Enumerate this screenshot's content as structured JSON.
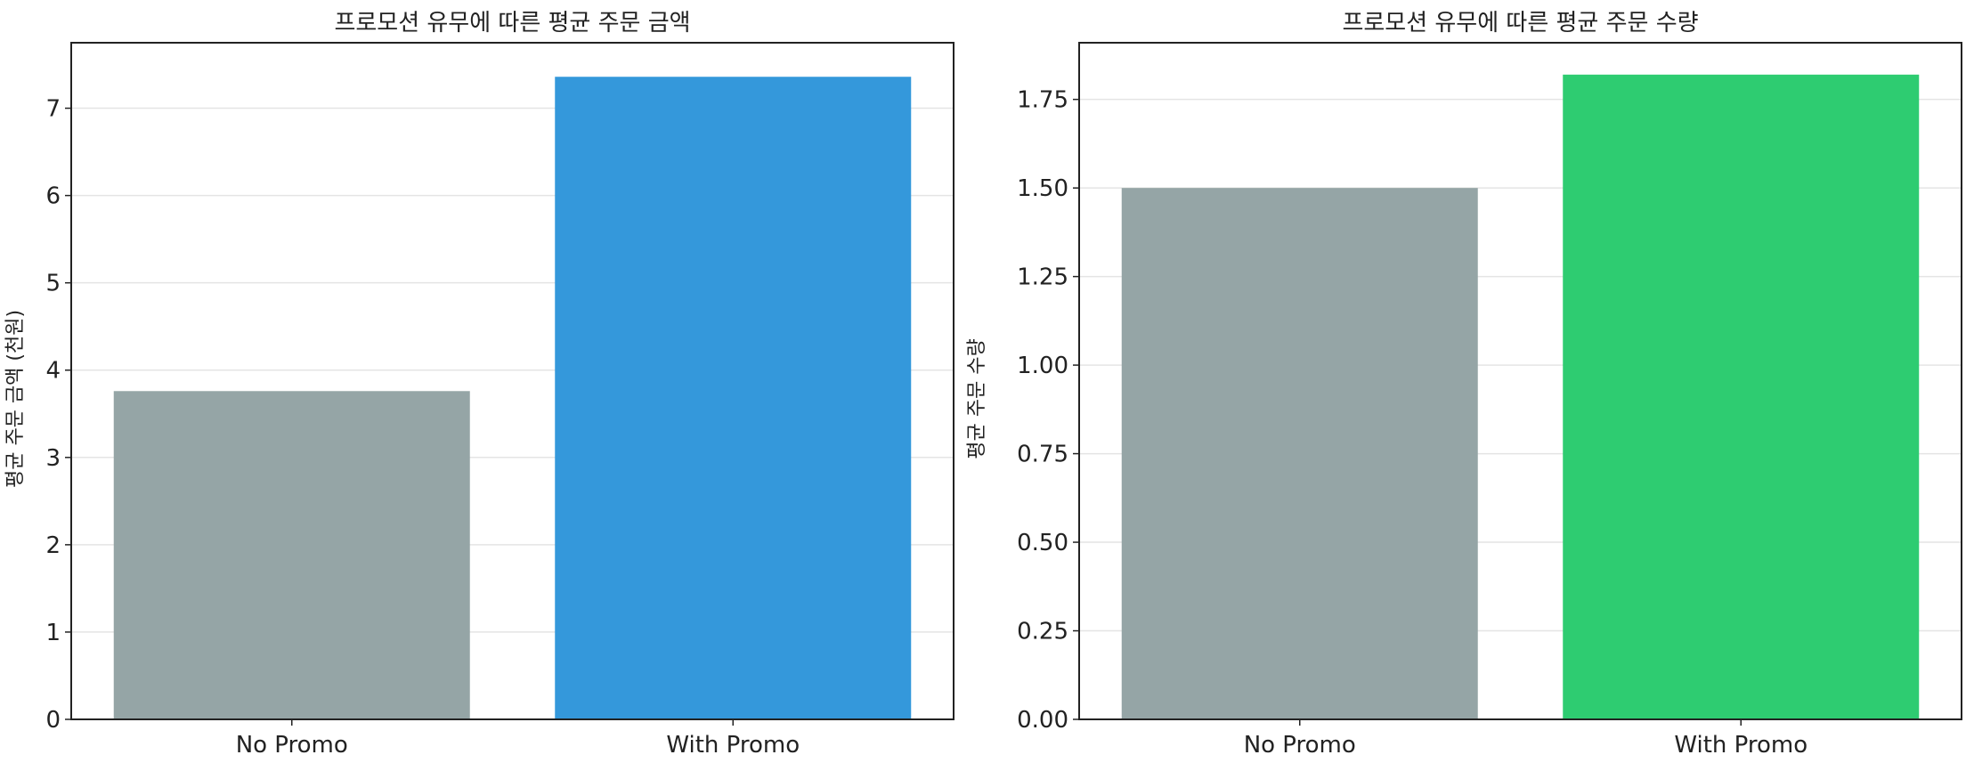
{
  "chart_data": [
    {
      "type": "bar",
      "title": "프로모션 유무에 따른 평균 주문 금액",
      "xlabel": "",
      "ylabel": "평균 주문 금액 (천원)",
      "categories": [
        "No Promo",
        "With Promo"
      ],
      "values": [
        3.76,
        7.36
      ],
      "colors": [
        "#95a5a6",
        "#3498db"
      ],
      "ylim": [
        0,
        7.75
      ],
      "yticks": [
        0,
        1,
        2,
        3,
        4,
        5,
        6,
        7
      ],
      "ytick_labels": [
        "0",
        "1",
        "2",
        "3",
        "4",
        "5",
        "6",
        "7"
      ],
      "grid": "horizontal"
    },
    {
      "type": "bar",
      "title": "프로모션 유무에 따른 평균 주문 수량",
      "xlabel": "",
      "ylabel": "평균 주문 수량",
      "categories": [
        "No Promo",
        "With Promo"
      ],
      "values": [
        1.5,
        1.82
      ],
      "colors": [
        "#95a5a6",
        "#2ecc71"
      ],
      "ylim": [
        0,
        1.91
      ],
      "yticks": [
        0,
        0.25,
        0.5,
        0.75,
        1.0,
        1.25,
        1.5,
        1.75
      ],
      "ytick_labels": [
        "0.00",
        "0.25",
        "0.50",
        "0.75",
        "1.00",
        "1.25",
        "1.50",
        "1.75"
      ],
      "grid": "horizontal"
    }
  ]
}
